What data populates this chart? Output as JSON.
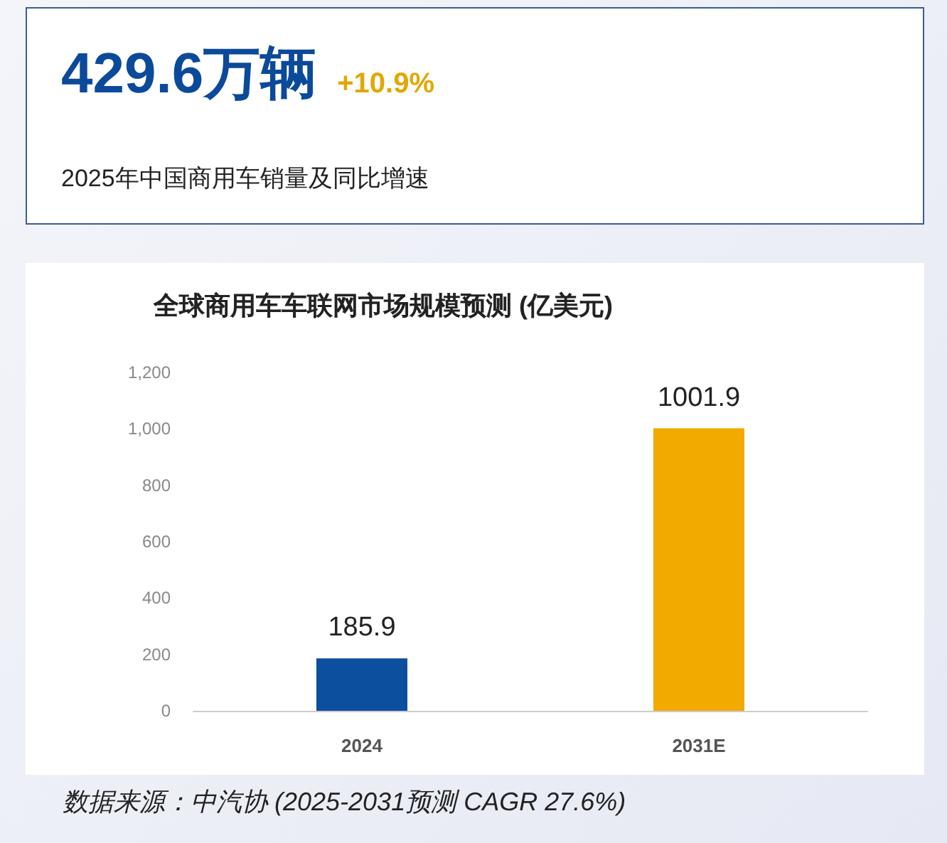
{
  "chart_data": [
    {
      "type": "other",
      "title": "429.6万辆",
      "subtitle": "2025年中国商用车销量及同比增速",
      "annotations": [
        "+10.9%"
      ]
    },
    {
      "type": "bar",
      "title": "全球商用车车联网市场规模预测 (亿美元)",
      "categories": [
        "2024",
        "2031E"
      ],
      "values": [
        185.9,
        1001.9
      ],
      "colors": [
        "#0b4f9e",
        "#f2a900"
      ],
      "ylim": [
        0,
        1200
      ],
      "yticks": [
        0,
        200,
        400,
        600,
        800,
        {
          "value": 1000,
          "label": "1,000"
        },
        {
          "value": 1200,
          "label": "1,200"
        }
      ],
      "data_labels": true,
      "grid": false,
      "annotations": [
        "数据来源：中汽协 (2025-2031预测 CAGR 27.6%)"
      ]
    }
  ]
}
